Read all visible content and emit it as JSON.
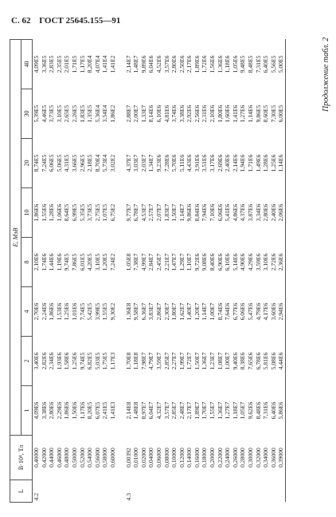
{
  "header": {
    "page": "С. 62",
    "standard": "ГОСТ 25645.155—91"
  },
  "caption": "Продолжение табл. 2",
  "table": {
    "col_l": "L",
    "col_b": "B·10⁴, Тл",
    "energy_label": "E, МэВ",
    "energies": [
      "1",
      "2",
      "4",
      "8",
      "10",
      "20",
      "30",
      "40"
    ],
    "groups": [
      {
        "l": "4.2",
        "rows": [
          [
            "0,40000",
            "4,09E6",
            "3,40E6",
            "2,70E6",
            "2,10E6",
            "1,86E6",
            "8,74E5",
            "5,39E5",
            "4,09E5"
          ],
          [
            "0,42000",
            "3,38E6",
            "2,82E6",
            "2,24E6",
            "1,74E6",
            "1,55E6",
            "7,24E5",
            "4,46E5",
            "3,36E5"
          ],
          [
            "0,44000",
            "2,80E6",
            "2,34E6",
            "1,86E6",
            "1,44E6",
            "1,28E6",
            "6,06E5",
            "3,73E5",
            "2,83E5"
          ],
          [
            "0,46000",
            "2,29E6",
            "1,93E6",
            "1,53E6",
            "1,19E6",
            "1,06E6",
            "5,06E5",
            "3,10E5",
            "2,35E5"
          ],
          [
            "0,48000",
            "1,86E6",
            "1,58E6",
            "1,25E6",
            "9,74E5",
            "8,64E5",
            "4,31E5",
            "2,65E5",
            "2,01E5"
          ],
          [
            "0,50000",
            "1,50E6",
            "1,25E6",
            "1,01E6",
            "7,86E5",
            "6,99E5",
            "3,66E5",
            "2,26E5",
            "1,71E5"
          ],
          [
            "0,52000",
            "1,17E6",
            "9,74E5",
            "7,74E5",
            "6,01E5",
            "5,35E5",
            "2,96E5",
            "1,83E5",
            "1,17E5"
          ],
          [
            "0,54000",
            "8,20E5",
            "6,82E5",
            "5,42E5",
            "4,20E5",
            "3,73E5",
            "2,18E5",
            "1,35E5",
            "8,20E4"
          ],
          [
            "0,56000",
            "6,07E5",
            "5,03E5",
            "3,99E5",
            "3,10E5",
            "2,75E5",
            "8,70E4",
            "5,36E4",
            "4,07E4"
          ],
          [
            "0,58000",
            "2,41E5",
            "1,75E5",
            "1,55E5",
            "1,20E5",
            "1,07E5",
            "5,73E4",
            "3,54E4",
            "1,41E4"
          ],
          [
            "0,60000",
            "1,41E3",
            "1,17E3",
            "9,30E2",
            "7,24E2",
            "6,75E2",
            "3,02E2",
            "1,86E2",
            "1,41E2"
          ]
        ]
      },
      {
        "l": "4.3",
        "rows": [
          [
            "0,00392",
            "2,14E8",
            "1,70E8",
            "1,36E8",
            "1,05E8",
            "9,77E7",
            "4,37E7",
            "2,88E7",
            "2,14E7"
          ],
          [
            "0,01000",
            "1,48E8",
            "1,18E8",
            "9,58E7",
            "7,38E7",
            "6,78E7",
            "3,03E7",
            "2,00E7",
            "1,48E7"
          ],
          [
            "0,02000",
            "8,97E7",
            "7,98E7",
            "6,36E7",
            "4,99E7",
            "4,53E7",
            "2,03E7",
            "1,33E7",
            "9,89E6"
          ],
          [
            "0,04000",
            "6,04E7",
            "4,79E7",
            "3,83E7",
            "2,84E7",
            "2,57E7",
            "1,34E7",
            "8,14E6",
            "6,04E6"
          ],
          [
            "0,06000",
            "4,32E7",
            "3,59E7",
            "2,86E7",
            "2,45E7",
            "2,07E7",
            "9,23E6",
            "6,10E6",
            "4,52E6"
          ],
          [
            "0,08000",
            "3,57E7",
            "2,85E7",
            "2,30E7",
            "2,21E7",
            "1,83E7",
            "7,28E6",
            "4,81E6",
            "3,57E6"
          ],
          [
            "0,10000",
            "2,85E7",
            "2,27E7",
            "1,80E7",
            "1,47E7",
            "1,50E7",
            "5,70E6",
            "3,74E6",
            "2,80E6"
          ],
          [
            "0,12000",
            "2,48E7",
            "1,99E7",
            "1,62E7",
            "1,29E7",
            "1,14E7",
            "5,11E6",
            "3,38E6",
            "2,50E6"
          ],
          [
            "0,14000",
            "2,17E7",
            "1,72E7",
            "1,40E7",
            "1,10E7",
            "9,86E6",
            "4,43E6",
            "2,92E6",
            "2,17E6"
          ],
          [
            "0,16000",
            "1,89E7",
            "1,50E7",
            "1,20E7",
            "9,72E6",
            "8,84E6",
            "3,91E6",
            "2,56E6",
            "1,89E6"
          ],
          [
            "0,18000",
            "1,70E7",
            "1,36E7",
            "1,14E7",
            "9,08E6",
            "7,94E6",
            "3,51E6",
            "2,31E6",
            "1,72E6"
          ],
          [
            "0,20000",
            "1,55E7",
            "1,23E7",
            "1,00E7",
            "8,40E6",
            "7,10E6",
            "3,17E6",
            "2,10E6",
            "1,56E6"
          ],
          [
            "0,22000",
            "1,36E7",
            "1,08E7",
            "8,74E6",
            "6,90E6",
            "6,06E6",
            "2,69E6",
            "1,80E6",
            "1,36E6"
          ],
          [
            "0,24000",
            "1,27E7",
            "1,00E7",
            "7,64E6",
            "6,10E6",
            "5,41E6",
            "2,40E6",
            "1,60E6",
            "1,18E6"
          ],
          [
            "0,26000",
            "1,18E7",
            "9,40E6",
            "6,77E6",
            "5,14E6",
            "4,86E6",
            "2,14E6",
            "1,41E6",
            "1,05E6"
          ],
          [
            "0,28000",
            "1,05E7",
            "8,38E6",
            "6,06E6",
            "4,90E6",
            "4,37E6",
            "1,94E6",
            "1,27E6",
            "9,48E5"
          ],
          [
            "0,30000",
            "9,62E6",
            "7,65E6",
            "5,47E6",
            "4,29E6",
            "3,87E6",
            "1,71E6",
            "1,14E6",
            "8,48E5"
          ],
          [
            "0,32000",
            "8,48E6",
            "6,78E6",
            "4,79E6",
            "3,59E6",
            "3,34E6",
            "1,49E6",
            "9,86E5",
            "7,31E5"
          ],
          [
            "0,34000",
            "7,31E6",
            "5,81E6",
            "4,17E6",
            "3,10E6",
            "2,80E6",
            "1,28E6",
            "8,60E5",
            "6,40E5"
          ],
          [
            "0,36000",
            "6,40E6",
            "5,08E6",
            "3,60E6",
            "2,72E6",
            "2,40E6",
            "1,25E6",
            "7,30E5",
            "5,56E5"
          ],
          [
            "0,39000",
            "5,86E6",
            "4,44E6",
            "2,94E6",
            "2,36E6",
            "2,06E6",
            "1,14E6",
            "6,00E5",
            "5,00E5"
          ]
        ]
      }
    ]
  }
}
